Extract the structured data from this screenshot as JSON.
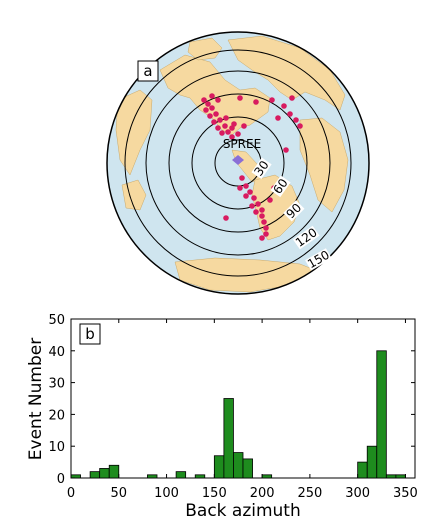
{
  "panel_a": {
    "label": "a",
    "station": "SPREE",
    "ring_labels": [
      "30",
      "60",
      "90",
      "120",
      "150"
    ],
    "ring_distances_deg": [
      30,
      60,
      90,
      120,
      150
    ],
    "colors": {
      "ocean": "#cfe5ef",
      "land": "#f6d9a0",
      "event": "#d81b60",
      "station": "#8a6fd6"
    }
  },
  "chart_data": {
    "type": "bar",
    "panel_label": "b",
    "xlabel": "Back azimuth",
    "ylabel": "Event Number",
    "xlim": [
      0,
      360
    ],
    "ylim": [
      0,
      50
    ],
    "xticks": [
      0,
      50,
      100,
      150,
      200,
      250,
      300,
      350
    ],
    "yticks": [
      0,
      10,
      20,
      30,
      40,
      50
    ],
    "bin_width": 10,
    "bar_color": "#1e8c1e",
    "bins": [
      0,
      20,
      30,
      40,
      80,
      110,
      130,
      150,
      160,
      170,
      180,
      200,
      300,
      310,
      320,
      330,
      340
    ],
    "values": [
      1,
      2,
      3,
      4,
      1,
      2,
      1,
      7,
      25,
      8,
      6,
      1,
      5,
      10,
      40,
      1,
      1
    ]
  }
}
